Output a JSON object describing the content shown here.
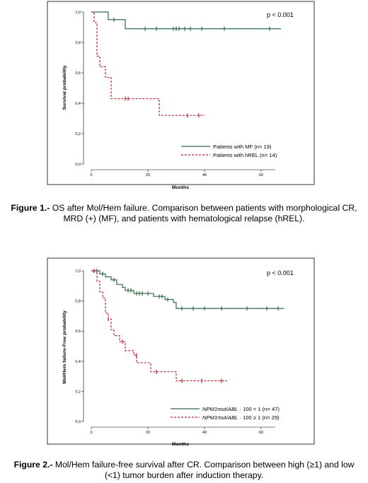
{
  "chart_data": [
    {
      "type": "line",
      "subtype": "kaplan-meier",
      "xlabel": "Months",
      "ylabel": "Survival probability",
      "xlim": [
        0,
        70
      ],
      "ylim": [
        0,
        1
      ],
      "x_ticks": [
        "0",
        "20",
        "40",
        "60"
      ],
      "y_ticks": [
        "0,0",
        "0,2",
        "0,4",
        "0,6",
        "0,8",
        "1,0"
      ],
      "annotation": "p < 0.001",
      "legend_position": "bottom-right",
      "series": [
        {
          "name": "Patients with MF (n= 19)",
          "color": "#2e6b48",
          "dash": "solid",
          "steps": [
            [
              0,
              1.0
            ],
            [
              6,
              0.95
            ],
            [
              12,
              0.89
            ],
            [
              67,
              0.89
            ]
          ],
          "censored": [
            [
              8,
              0.95
            ],
            [
              19,
              0.89
            ],
            [
              23,
              0.89
            ],
            [
              29,
              0.89
            ],
            [
              30,
              0.89
            ],
            [
              31,
              0.89
            ],
            [
              33,
              0.89
            ],
            [
              35,
              0.89
            ],
            [
              39,
              0.89
            ],
            [
              47,
              0.89
            ],
            [
              63,
              0.89
            ]
          ]
        },
        {
          "name": "Patients with hREL (n= 14)",
          "color": "#b3262e",
          "dash": "dashed",
          "steps": [
            [
              0,
              1.0
            ],
            [
              1,
              0.93
            ],
            [
              2,
              0.71
            ],
            [
              3,
              0.64
            ],
            [
              5,
              0.57
            ],
            [
              7,
              0.43
            ],
            [
              24,
              0.32
            ],
            [
              40,
              0.32
            ]
          ],
          "censored": [
            [
              12,
              0.43
            ],
            [
              13,
              0.43
            ],
            [
              34,
              0.32
            ],
            [
              38,
              0.32
            ]
          ]
        }
      ],
      "caption_label": "Figure 1.-",
      "caption_text": " OS after Mol/Hem failure. Comparison between patients with morphological CR, MRD (+) (MF), and patients with hematological relapse (hREL)."
    },
    {
      "type": "line",
      "subtype": "kaplan-meier",
      "xlabel": "Months",
      "ylabel": "Mol/Hem failure-Free probability",
      "xlim": [
        0,
        70
      ],
      "ylim": [
        0,
        1
      ],
      "x_ticks": [
        "0",
        "20",
        "40",
        "60"
      ],
      "y_ticks": [
        "0,0",
        "0,2",
        "0,4",
        "0,6",
        "0,8",
        "1,0"
      ],
      "annotation": "p < 0.001",
      "legend_position": "bottom-right",
      "series": [
        {
          "name_italic": "NPM1",
          "name_mid": "mut/",
          "name_italic2": "ABL",
          "name_rest": " · 100 < 1 (n= 47)",
          "color": "#2e6b48",
          "dash": "solid",
          "steps": [
            [
              0,
              1.0
            ],
            [
              3,
              0.98
            ],
            [
              5,
              0.96
            ],
            [
              7,
              0.94
            ],
            [
              9,
              0.91
            ],
            [
              11,
              0.89
            ],
            [
              12,
              0.87
            ],
            [
              15,
              0.85
            ],
            [
              22,
              0.83
            ],
            [
              26,
              0.81
            ],
            [
              29,
              0.79
            ],
            [
              30,
              0.75
            ],
            [
              68,
              0.75
            ]
          ],
          "censored": [
            [
              1,
              1.0
            ],
            [
              2,
              1.0
            ],
            [
              4,
              0.98
            ],
            [
              8,
              0.94
            ],
            [
              13,
              0.87
            ],
            [
              14,
              0.87
            ],
            [
              16,
              0.85
            ],
            [
              17,
              0.85
            ],
            [
              18,
              0.85
            ],
            [
              20,
              0.85
            ],
            [
              24,
              0.83
            ],
            [
              25,
              0.83
            ],
            [
              27,
              0.81
            ],
            [
              32,
              0.75
            ],
            [
              36,
              0.75
            ],
            [
              40,
              0.75
            ],
            [
              46,
              0.75
            ],
            [
              55,
              0.75
            ],
            [
              62,
              0.75
            ],
            [
              66,
              0.75
            ]
          ]
        },
        {
          "name_italic": "NPM1",
          "name_mid": "mut/",
          "name_italic2": "ABL",
          "name_rest": " · 100 ≥ 1 (n= 29)",
          "color": "#b3262e",
          "dash": "dashed",
          "steps": [
            [
              0,
              1.0
            ],
            [
              2,
              0.93
            ],
            [
              3,
              0.86
            ],
            [
              4,
              0.82
            ],
            [
              5,
              0.72
            ],
            [
              6,
              0.68
            ],
            [
              7,
              0.61
            ],
            [
              8,
              0.57
            ],
            [
              10,
              0.53
            ],
            [
              12,
              0.47
            ],
            [
              15,
              0.44
            ],
            [
              16,
              0.39
            ],
            [
              21,
              0.33
            ],
            [
              30,
              0.27
            ],
            [
              48,
              0.27
            ]
          ],
          "censored": [
            [
              1,
              1.0
            ],
            [
              6,
              0.68
            ],
            [
              11,
              0.53
            ],
            [
              16,
              0.44
            ],
            [
              23,
              0.33
            ],
            [
              32,
              0.27
            ],
            [
              39,
              0.27
            ],
            [
              46,
              0.27
            ]
          ]
        }
      ],
      "caption_label": "Figure 2.-",
      "caption_text": " Mol/Hem failure-free survival after CR. Comparison between high (≥1) and low (<1) tumor burden after induction therapy."
    }
  ]
}
